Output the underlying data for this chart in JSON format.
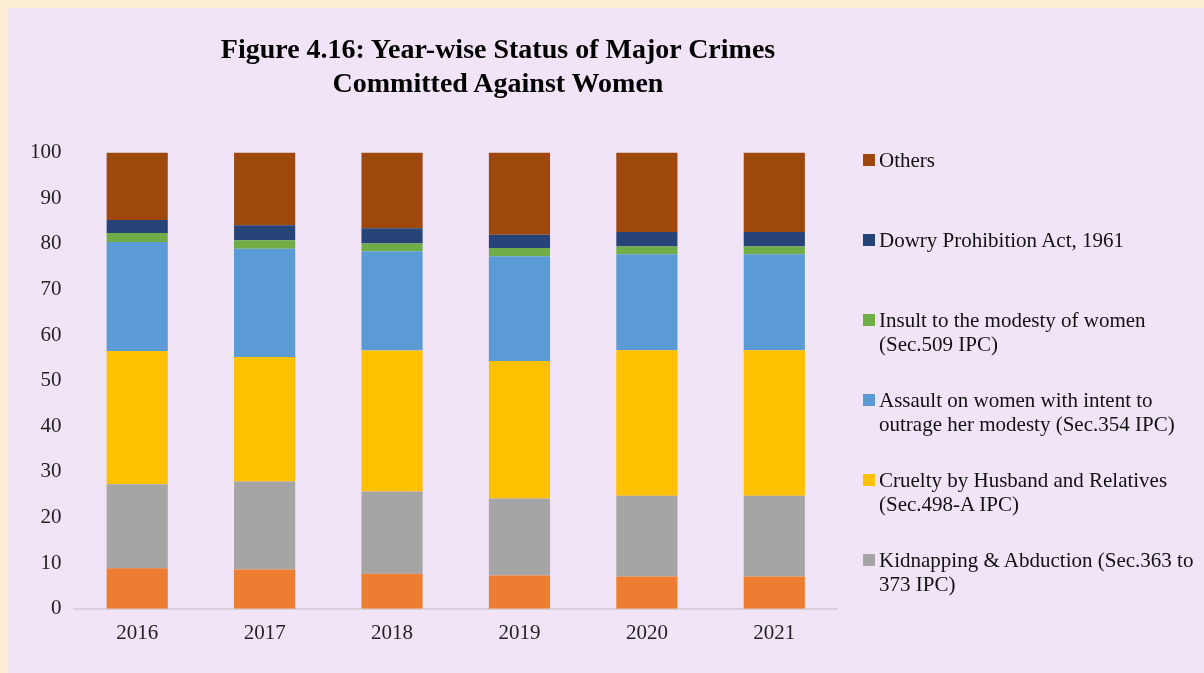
{
  "chart_data": {
    "type": "bar",
    "stacked": true,
    "title": "Figure 4.16: Year-wise Status of Major Crimes Committed Against Women",
    "categories": [
      "2016",
      "2017",
      "2018",
      "2019",
      "2020",
      "2021"
    ],
    "series": [
      {
        "color": "#ed7d31",
        "values": [
          8.9,
          8.6,
          7.7,
          7.3,
          7.1,
          7.1
        ]
      },
      {
        "name": "Kidnapping & Abduction (Sec.363 to 373 IPC)",
        "color": "#a5a5a5",
        "values": [
          18.4,
          19.3,
          18.0,
          16.9,
          17.7,
          17.7
        ]
      },
      {
        "name": "Cruelty by Husband and Relatives (Sec.498-A IPC)",
        "color": "#ffc000",
        "values": [
          29.2,
          27.3,
          30.9,
          30.1,
          31.9,
          31.9
        ]
      },
      {
        "name": "Assault on women with intent to outrage her modesty (Sec.354 IPC)",
        "color": "#5b9bd5",
        "values": [
          23.9,
          23.7,
          21.8,
          23.0,
          21.0,
          21.0
        ]
      },
      {
        "name": "Insult to the modesty of women (Sec.509 IPC)",
        "color": "#70ad47",
        "values": [
          2.0,
          1.9,
          1.7,
          1.8,
          1.7,
          1.7
        ]
      },
      {
        "name": "Dowry Prohibition Act, 1961",
        "color": "#264478",
        "values": [
          2.8,
          3.3,
          3.3,
          2.9,
          3.2,
          3.2
        ]
      },
      {
        "name": "Others",
        "color": "#9e480e",
        "values": [
          14.8,
          15.9,
          16.6,
          18.0,
          17.4,
          17.4
        ]
      }
    ],
    "ylim": [
      0,
      100
    ],
    "yticks": [
      0,
      10,
      20,
      30,
      40,
      50,
      60,
      70,
      80,
      90,
      100
    ],
    "grid": false,
    "legend": "right"
  }
}
